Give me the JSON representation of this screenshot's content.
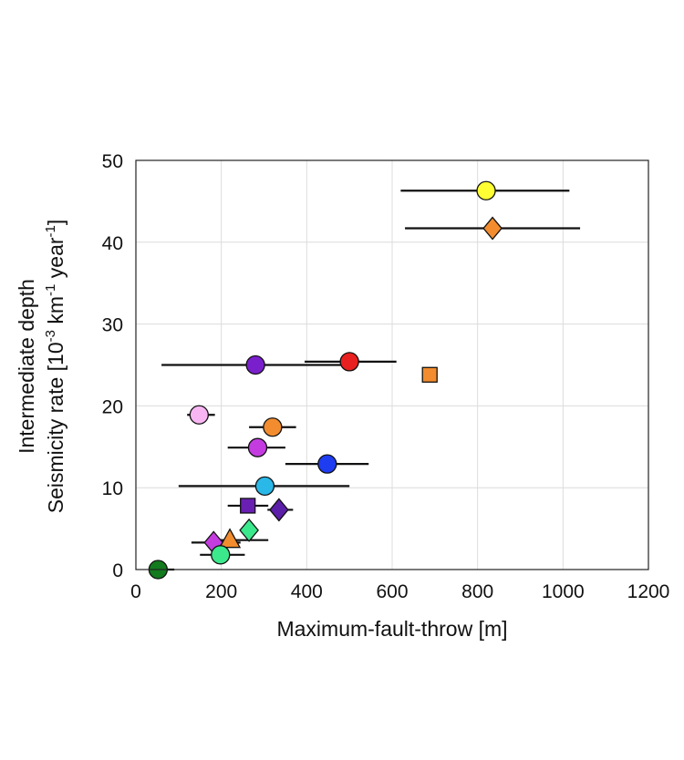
{
  "chart_data": {
    "type": "scatter",
    "xlabel": "Maximum-fault-throw [m]",
    "ylabel_line1": "Intermediate depth",
    "ylabel_line2": {
      "base": "Seismicity rate [10",
      "exp1": "-3",
      "mid": " km",
      "exp2": "-1",
      "mid2": " year",
      "exp3": "-1",
      "end": "]"
    },
    "xlim": [
      0,
      1200
    ],
    "ylim": [
      0,
      50
    ],
    "xticks": [
      0,
      200,
      400,
      600,
      800,
      1000,
      1200
    ],
    "yticks": [
      0,
      10,
      20,
      30,
      40,
      50
    ],
    "grid": true,
    "points": [
      {
        "x": 820,
        "y": 46.3,
        "xerr": [
          620,
          1015
        ],
        "shape": "circle",
        "color": "#FFFF33"
      },
      {
        "x": 835,
        "y": 41.7,
        "xerr": [
          630,
          1040
        ],
        "shape": "diamond",
        "color": "#F28C2E"
      },
      {
        "x": 500,
        "y": 25.4,
        "xerr": [
          395,
          610
        ],
        "shape": "circle",
        "color": "#E8201F"
      },
      {
        "x": 280,
        "y": 25.0,
        "xerr": [
          60,
          500
        ],
        "shape": "circle",
        "color": "#7A1FCC"
      },
      {
        "x": 688,
        "y": 23.8,
        "shape": "square",
        "color": "#F28C2E"
      },
      {
        "x": 148,
        "y": 18.9,
        "xerr": [
          120,
          185
        ],
        "shape": "circle",
        "color": "#F7B6F2"
      },
      {
        "x": 320,
        "y": 17.4,
        "xerr": [
          265,
          375
        ],
        "shape": "circle",
        "color": "#F28C2E"
      },
      {
        "x": 285,
        "y": 14.9,
        "xerr": [
          215,
          350
        ],
        "shape": "circle",
        "color": "#C43CE0"
      },
      {
        "x": 448,
        "y": 12.9,
        "xerr": [
          350,
          545
        ],
        "shape": "circle",
        "color": "#1E3CF0"
      },
      {
        "x": 302,
        "y": 10.2,
        "xerr": [
          100,
          500
        ],
        "shape": "circle",
        "color": "#2AB8E8"
      },
      {
        "x": 262,
        "y": 7.8,
        "xerr": [
          215,
          310
        ],
        "shape": "square",
        "color": "#6A1FB3"
      },
      {
        "x": 335,
        "y": 7.3,
        "xerr": [
          308,
          368
        ],
        "shape": "diamond",
        "color": "#5C1FA8"
      },
      {
        "x": 265,
        "y": 4.8,
        "shape": "diamond",
        "color": "#3CE88C"
      },
      {
        "x": 182,
        "y": 3.3,
        "xerr": [
          130,
          245
        ],
        "shape": "diamond",
        "color": "#C43CE0"
      },
      {
        "x": 220,
        "y": 3.6,
        "xerr": [
          175,
          310
        ],
        "shape": "triangle",
        "color": "#F28C2E"
      },
      {
        "x": 198,
        "y": 1.8,
        "xerr": [
          150,
          255
        ],
        "shape": "circle",
        "color": "#3CE88C"
      },
      {
        "x": 52,
        "y": 0.0,
        "xerr": [
          40,
          90
        ],
        "shape": "circle",
        "color": "#137A1E"
      }
    ]
  }
}
